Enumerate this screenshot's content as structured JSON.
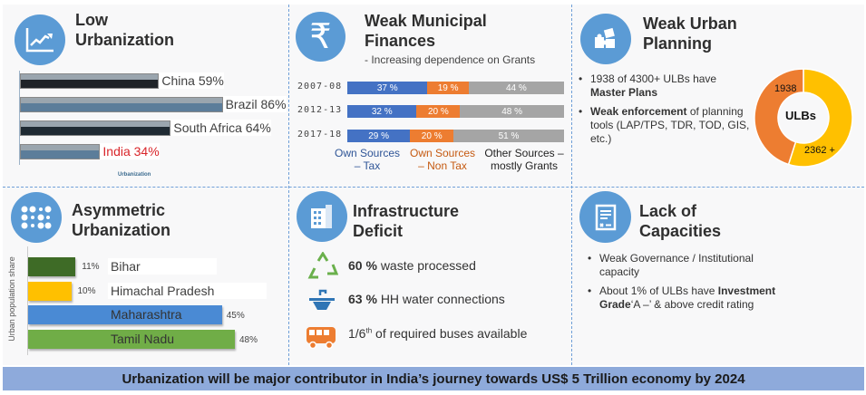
{
  "panels": {
    "low_urbanization": {
      "title_line1": "Low",
      "title_line2": "Urbanization",
      "icon": "chart-trend-icon",
      "countries": [
        {
          "label": "China 59%",
          "value": 59,
          "color": "#1f2328"
        },
        {
          "label": "Brazil 86%",
          "value": 86,
          "color": "#5c7d9a"
        },
        {
          "label": "South Africa 64%",
          "value": 64,
          "color": "#1f2a33"
        },
        {
          "label": "India 34%",
          "value": 34,
          "color": "#5c7d9a",
          "text_color": "#d9262b"
        }
      ],
      "axis_label": "Urbanization"
    },
    "weak_finances": {
      "title_line1": "Weak Municipal",
      "title_line2": "Finances",
      "subtitle": "- Increasing dependence on Grants",
      "icon": "rupee-icon",
      "rows": [
        {
          "year": "2007-08",
          "values": [
            "37 %",
            "19 %",
            "44 %"
          ],
          "nums": [
            37,
            19,
            44
          ]
        },
        {
          "year": "2012-13",
          "values": [
            "32 %",
            "20 %",
            "48 %"
          ],
          "nums": [
            32,
            20,
            48
          ]
        },
        {
          "year": "2017-18",
          "values": [
            "29 %",
            "20 %",
            "51 %"
          ],
          "nums": [
            29,
            20,
            51
          ]
        }
      ],
      "legend": [
        {
          "label": "Own Sources – Tax",
          "color": "#2f5597"
        },
        {
          "label": "Own Sources – Non Tax",
          "color": "#c55a11"
        },
        {
          "label": "Other Sources – mostly Grants",
          "color": "#222"
        }
      ],
      "colors": [
        "#4472c4",
        "#ed7d31",
        "#a5a5a5"
      ]
    },
    "weak_planning": {
      "title_line1": "Weak Urban",
      "title_line2": "Planning",
      "icon": "puzzle-icon",
      "bullet1_text": "1938 of 4300+ ULBs have",
      "bullet1_bold": "Master Plans",
      "bullet2_bold": "Weak enforcement",
      "bullet2_text": "of planning tools (LAP/TPS, TDR, TOD, GIS, etc.)",
      "donut": {
        "center": "ULBs",
        "slices": [
          {
            "label": "1938",
            "value": 1938,
            "color": "#ed7d31"
          },
          {
            "label": "2362 +",
            "value": 2362,
            "color": "#ffc000"
          }
        ]
      }
    },
    "asymmetric": {
      "title_line1": "Asymmetric",
      "title_line2": "Urbanization",
      "icon": "dots-grid-icon",
      "ylabel": "Urban population share",
      "states": [
        {
          "name": "Bihar",
          "pct": "11%",
          "value": 11,
          "color": "#3e6b26"
        },
        {
          "name": "Himachal Pradesh",
          "pct": "10%",
          "value": 10,
          "color": "#ffc000"
        },
        {
          "name": "Maharashtra",
          "pct": "45%",
          "value": 45,
          "color": "#4a8ad4"
        },
        {
          "name": "Tamil Nadu",
          "pct": "48%",
          "value": 48,
          "color": "#70ad47"
        }
      ]
    },
    "infrastructure": {
      "title_line1": "Infrastructure",
      "title_line2": "Deficit",
      "icon": "building-icon",
      "items": [
        {
          "bold": "60 %",
          "text": "waste processed",
          "icon": "recycle-icon"
        },
        {
          "bold": "63 %",
          "text": "HH water connections",
          "icon": "water-tap-icon"
        },
        {
          "pre": "1/6",
          "sup": "th",
          "text": "of required buses available",
          "icon": "bus-icon"
        }
      ]
    },
    "capacities": {
      "title_line1": "Lack of",
      "title_line2": "Capacities",
      "icon": "document-icon",
      "bullet1": "Weak Governance / Institutional capacity",
      "bullet2_text": "About 1% of ULBs have",
      "bullet2_bold": "Investment Grade",
      "bullet2_tail": "‘A –’ & above credit rating"
    }
  },
  "banner": "Urbanization will be major contributor in India’s journey towards US$ 5 Trillion economy by 2024"
}
